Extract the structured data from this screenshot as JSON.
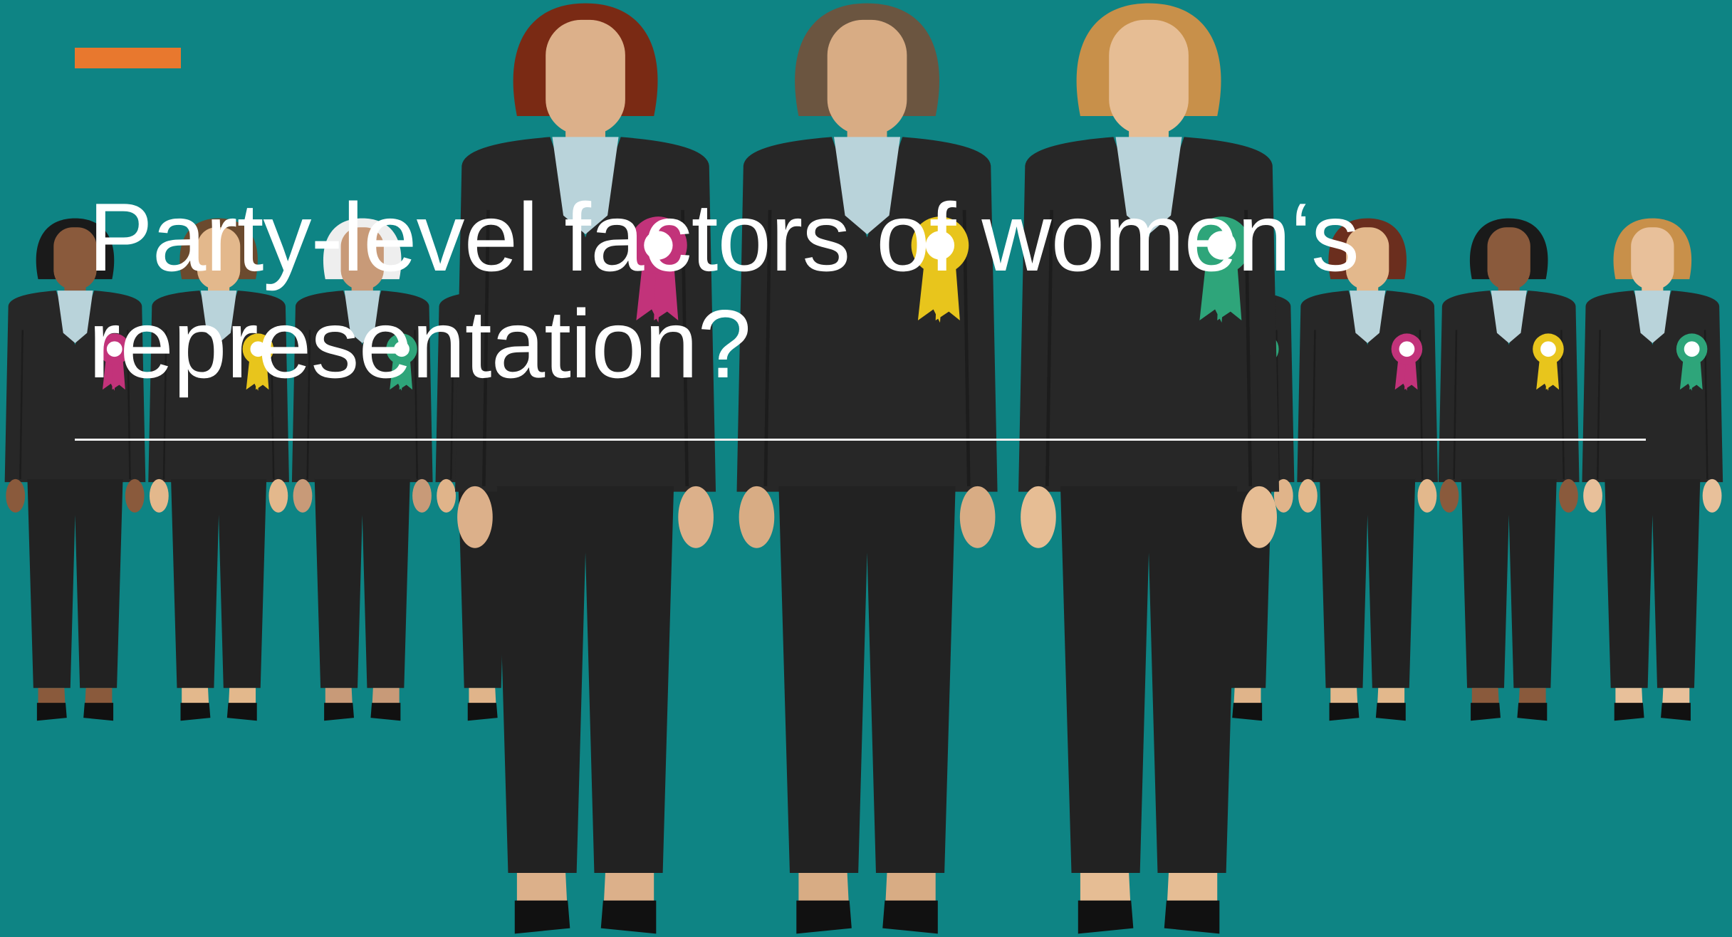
{
  "slide": {
    "title": "Party-level factors of women‘s representation?"
  }
}
